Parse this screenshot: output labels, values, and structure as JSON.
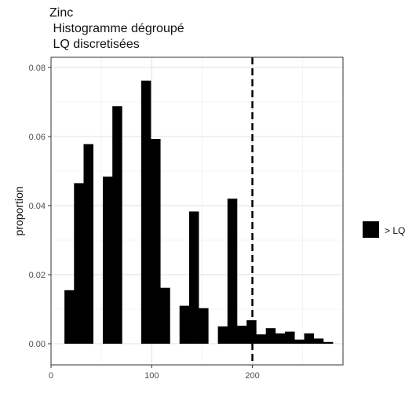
{
  "chart_data": {
    "type": "bar",
    "title_lines": [
      "Zinc",
      " Histogramme dégroupé",
      " LQ discretisées"
    ],
    "xlabel": "",
    "ylabel": "proportion",
    "xlim": [
      0,
      290
    ],
    "ylim": [
      0,
      0.08
    ],
    "x_ticks": [
      0,
      100,
      200
    ],
    "y_ticks": [
      0.0,
      0.02,
      0.04,
      0.06,
      0.08
    ],
    "y_tick_labels": [
      "0.00",
      "0.02",
      "0.04",
      "0.06",
      "0.08"
    ],
    "grid": true,
    "vline": 200,
    "legend": {
      "label": "> LQ",
      "color": "#000000",
      "placement": "right"
    },
    "bin_width": 9.52,
    "bin_centers": [
      18.1,
      27.6,
      37.1,
      46.7,
      56.2,
      65.7,
      75.2,
      84.8,
      94.3,
      103.8,
      113.3,
      122.9,
      132.4,
      141.9,
      151.4,
      161.0,
      170.5,
      180.0,
      189.5,
      199.0,
      208.6,
      218.1,
      227.6,
      237.1,
      246.7,
      256.2,
      265.7,
      275.2
    ],
    "values": [
      0.0155,
      0.0465,
      0.0578,
      0.0,
      0.0484,
      0.0688,
      0.0,
      0.0,
      0.0762,
      0.0593,
      0.0162,
      0.0,
      0.011,
      0.0383,
      0.0103,
      0.0,
      0.005,
      0.042,
      0.0052,
      0.0068,
      0.0027,
      0.0045,
      0.003,
      0.0035,
      0.0012,
      0.003,
      0.0015,
      0.0005
    ]
  }
}
